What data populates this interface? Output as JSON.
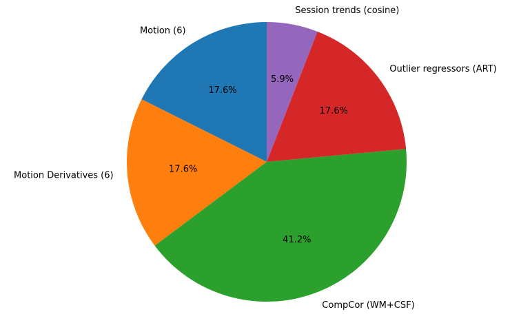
{
  "chart_data": {
    "type": "pie",
    "title": "",
    "categories": [
      "Motion (6)",
      "Motion Derivatives (6)",
      "CompCor (WM+CSF)",
      "Outlier regressors (ART)",
      "Session trends (cosine)"
    ],
    "values": [
      17.6,
      17.6,
      41.2,
      17.6,
      5.9
    ],
    "percent_labels": [
      "17.6%",
      "17.6%",
      "41.2%",
      "17.6%",
      "5.9%"
    ],
    "colors": [
      "#1f77b4",
      "#ff7f0e",
      "#2ca02c",
      "#d62728",
      "#9467bd"
    ],
    "start_angle_deg": 90,
    "direction": "counterclockwise",
    "legend": "none"
  }
}
